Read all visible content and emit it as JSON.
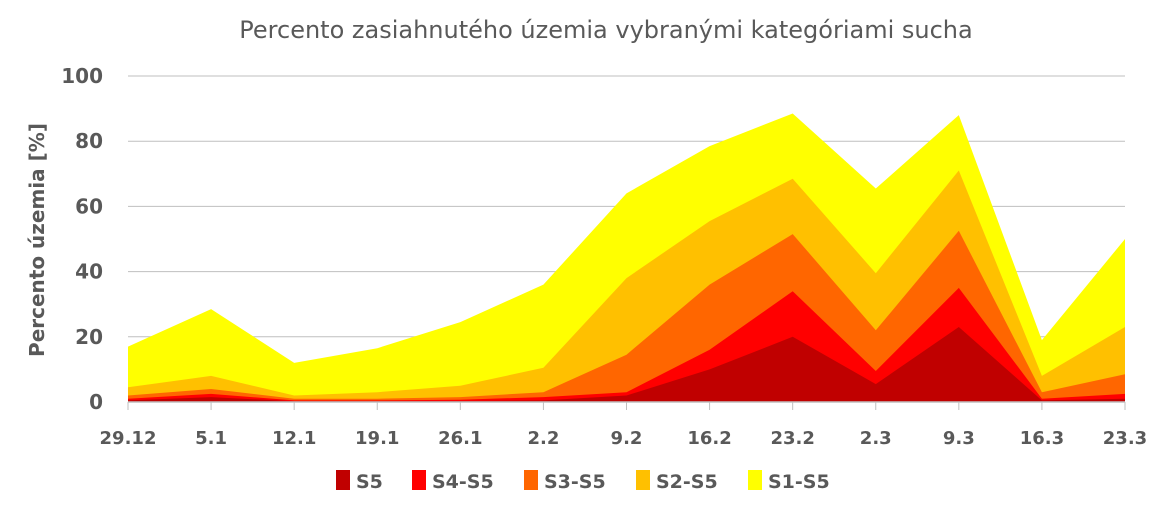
{
  "chart_data": {
    "type": "area",
    "title": "Percento zasiahnutého územia vybranými kategóriami sucha",
    "ylabel": "Percento územia  [%]",
    "xlabel": "",
    "categories": [
      "29.12",
      "5.1",
      "12.1",
      "19.1",
      "26.1",
      "2.2",
      "9.2",
      "16.2",
      "23.2",
      "2.3",
      "9.3",
      "16.3",
      "23.3"
    ],
    "ylim": [
      0,
      100
    ],
    "yticks": [
      0,
      20,
      40,
      60,
      80,
      100
    ],
    "grid": true,
    "legend_position": "bottom",
    "series": [
      {
        "name": "S5",
        "color": "#c00000",
        "values": [
          0.5,
          1.5,
          0.2,
          0.2,
          0.3,
          0.5,
          2,
          10,
          20,
          5.5,
          23,
          0.5,
          1
        ]
      },
      {
        "name": "S4-S5",
        "color": "#ff0000",
        "values": [
          1,
          2.5,
          0.5,
          0.5,
          0.7,
          1.5,
          3,
          16,
          34,
          9.5,
          35,
          1,
          2.5
        ]
      },
      {
        "name": "S3-S5",
        "color": "#ff6600",
        "values": [
          2,
          4,
          1,
          1,
          1.5,
          3,
          14.5,
          36,
          51.5,
          22,
          52.5,
          3,
          8.5
        ]
      },
      {
        "name": "S2-S5",
        "color": "#ffc000",
        "values": [
          4.5,
          8,
          2,
          3,
          5,
          10.5,
          38,
          55.5,
          68.5,
          39.5,
          71,
          8,
          23
        ]
      },
      {
        "name": "S1-S5",
        "color": "#ffff00",
        "values": [
          17,
          28.5,
          12,
          16.5,
          24.5,
          36,
          64,
          78.5,
          88.5,
          65.5,
          88,
          19,
          50
        ]
      }
    ]
  }
}
